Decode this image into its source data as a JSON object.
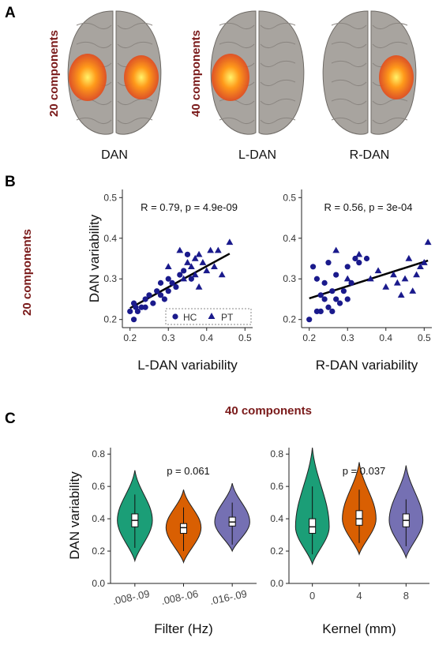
{
  "panels": {
    "A": {
      "letter": "A",
      "groups": [
        {
          "label": "20 components",
          "brains": [
            {
              "label": "DAN",
              "hemis": "both"
            }
          ]
        },
        {
          "label": "40 components",
          "brains": [
            {
              "label": "L-DAN",
              "hemis": "left"
            },
            {
              "label": "R-DAN",
              "hemis": "right"
            }
          ]
        }
      ]
    },
    "B": {
      "letter": "B",
      "side_label": "20 components"
    },
    "C": {
      "letter": "C",
      "top_label": "40 components"
    }
  },
  "colors": {
    "hc": "#1a1a8c",
    "pt": "#1a1a8c",
    "violin": [
      "#1b9e77",
      "#d95f02",
      "#7570b3"
    ],
    "maroon": "#7a1a1a",
    "brain": "#a8a49f",
    "activation": "#e34a1a"
  },
  "chart_data": [
    {
      "type": "scatter",
      "xlabel": "L-DAN variability",
      "ylabel": "DAN variability",
      "xlim": [
        0.18,
        0.52
      ],
      "ylim": [
        0.18,
        0.52
      ],
      "xticks": [
        "0.2",
        "0.3",
        "0.4",
        "0.5"
      ],
      "yticks": [
        "0.2",
        "0.3",
        "0.4",
        "0.5"
      ],
      "annotation": "R = 0.79, p = 4.9e-09",
      "fit": {
        "x": [
          0.2,
          0.46
        ],
        "y": [
          0.228,
          0.362
        ]
      },
      "legend": {
        "placement": "bottom-right",
        "entries": [
          "HC",
          "PT"
        ]
      },
      "series": [
        {
          "name": "HC",
          "marker": "circle",
          "x": [
            0.2,
            0.21,
            0.22,
            0.21,
            0.215,
            0.23,
            0.24,
            0.24,
            0.25,
            0.26,
            0.27,
            0.28,
            0.28,
            0.29,
            0.3,
            0.3,
            0.31,
            0.32,
            0.33,
            0.34,
            0.35,
            0.36
          ],
          "y": [
            0.22,
            0.24,
            0.22,
            0.2,
            0.23,
            0.23,
            0.23,
            0.25,
            0.26,
            0.24,
            0.27,
            0.26,
            0.29,
            0.25,
            0.3,
            0.27,
            0.29,
            0.28,
            0.31,
            0.32,
            0.36,
            0.3
          ]
        },
        {
          "name": "PT",
          "marker": "triangle",
          "x": [
            0.3,
            0.33,
            0.34,
            0.35,
            0.36,
            0.37,
            0.37,
            0.38,
            0.38,
            0.39,
            0.4,
            0.41,
            0.42,
            0.43,
            0.44,
            0.46
          ],
          "y": [
            0.33,
            0.37,
            0.3,
            0.34,
            0.33,
            0.31,
            0.35,
            0.28,
            0.36,
            0.34,
            0.32,
            0.37,
            0.33,
            0.37,
            0.31,
            0.39
          ]
        }
      ]
    },
    {
      "type": "scatter",
      "xlabel": "R-DAN variability",
      "ylabel": "",
      "xlim": [
        0.18,
        0.52
      ],
      "ylim": [
        0.18,
        0.52
      ],
      "xticks": [
        "0.2",
        "0.3",
        "0.4",
        "0.5"
      ],
      "yticks": [
        "0.2",
        "0.3",
        "0.4",
        "0.5"
      ],
      "annotation": "R = 0.56, p = 3e-04",
      "fit": {
        "x": [
          0.2,
          0.51
        ],
        "y": [
          0.252,
          0.345
        ]
      },
      "series": [
        {
          "name": "HC",
          "marker": "circle",
          "x": [
            0.2,
            0.21,
            0.22,
            0.22,
            0.23,
            0.23,
            0.24,
            0.24,
            0.25,
            0.25,
            0.26,
            0.26,
            0.27,
            0.27,
            0.28,
            0.29,
            0.3,
            0.3,
            0.31,
            0.32,
            0.33,
            0.35
          ],
          "y": [
            0.2,
            0.33,
            0.22,
            0.3,
            0.26,
            0.22,
            0.25,
            0.29,
            0.23,
            0.34,
            0.22,
            0.27,
            0.25,
            0.31,
            0.24,
            0.27,
            0.33,
            0.25,
            0.29,
            0.35,
            0.34,
            0.35
          ]
        },
        {
          "name": "PT",
          "marker": "triangle",
          "x": [
            0.27,
            0.3,
            0.33,
            0.36,
            0.38,
            0.4,
            0.42,
            0.43,
            0.44,
            0.45,
            0.46,
            0.47,
            0.48,
            0.49,
            0.5,
            0.51
          ],
          "y": [
            0.37,
            0.3,
            0.36,
            0.3,
            0.32,
            0.28,
            0.31,
            0.29,
            0.26,
            0.3,
            0.35,
            0.27,
            0.31,
            0.33,
            0.34,
            0.39
          ]
        }
      ]
    },
    {
      "type": "violin",
      "xlabel": "Filter (Hz)",
      "ylabel": "DAN variability",
      "ylim": [
        0,
        0.84
      ],
      "yticks": [
        "0.0",
        "0.2",
        "0.4",
        "0.6",
        "0.8"
      ],
      "categories": [
        ".008-.09",
        ".008-.06",
        ".016-.09"
      ],
      "annotation": "p = 0.061",
      "boxes": [
        {
          "lo": 0.22,
          "q1": 0.35,
          "median": 0.39,
          "q3": 0.43,
          "hi": 0.55
        },
        {
          "lo": 0.2,
          "q1": 0.31,
          "median": 0.345,
          "q3": 0.37,
          "hi": 0.47
        },
        {
          "lo": 0.24,
          "q1": 0.355,
          "median": 0.38,
          "q3": 0.41,
          "hi": 0.5
        }
      ],
      "ranges": [
        [
          0.14,
          0.7
        ],
        [
          0.13,
          0.58
        ],
        [
          0.2,
          0.62
        ]
      ]
    },
    {
      "type": "violin",
      "xlabel": "Kernel (mm)",
      "ylabel": "",
      "ylim": [
        0,
        0.84
      ],
      "yticks": [
        "0.0",
        "0.2",
        "0.4",
        "0.6",
        "0.8"
      ],
      "categories": [
        "0",
        "4",
        "8"
      ],
      "annotation": "p = 0.037",
      "boxes": [
        {
          "lo": 0.18,
          "q1": 0.31,
          "median": 0.35,
          "q3": 0.4,
          "hi": 0.6
        },
        {
          "lo": 0.25,
          "q1": 0.36,
          "median": 0.4,
          "q3": 0.45,
          "hi": 0.58
        },
        {
          "lo": 0.23,
          "q1": 0.35,
          "median": 0.39,
          "q3": 0.43,
          "hi": 0.52
        }
      ],
      "ranges": [
        [
          0.12,
          0.84
        ],
        [
          0.18,
          0.75
        ],
        [
          0.16,
          0.73
        ]
      ]
    }
  ]
}
